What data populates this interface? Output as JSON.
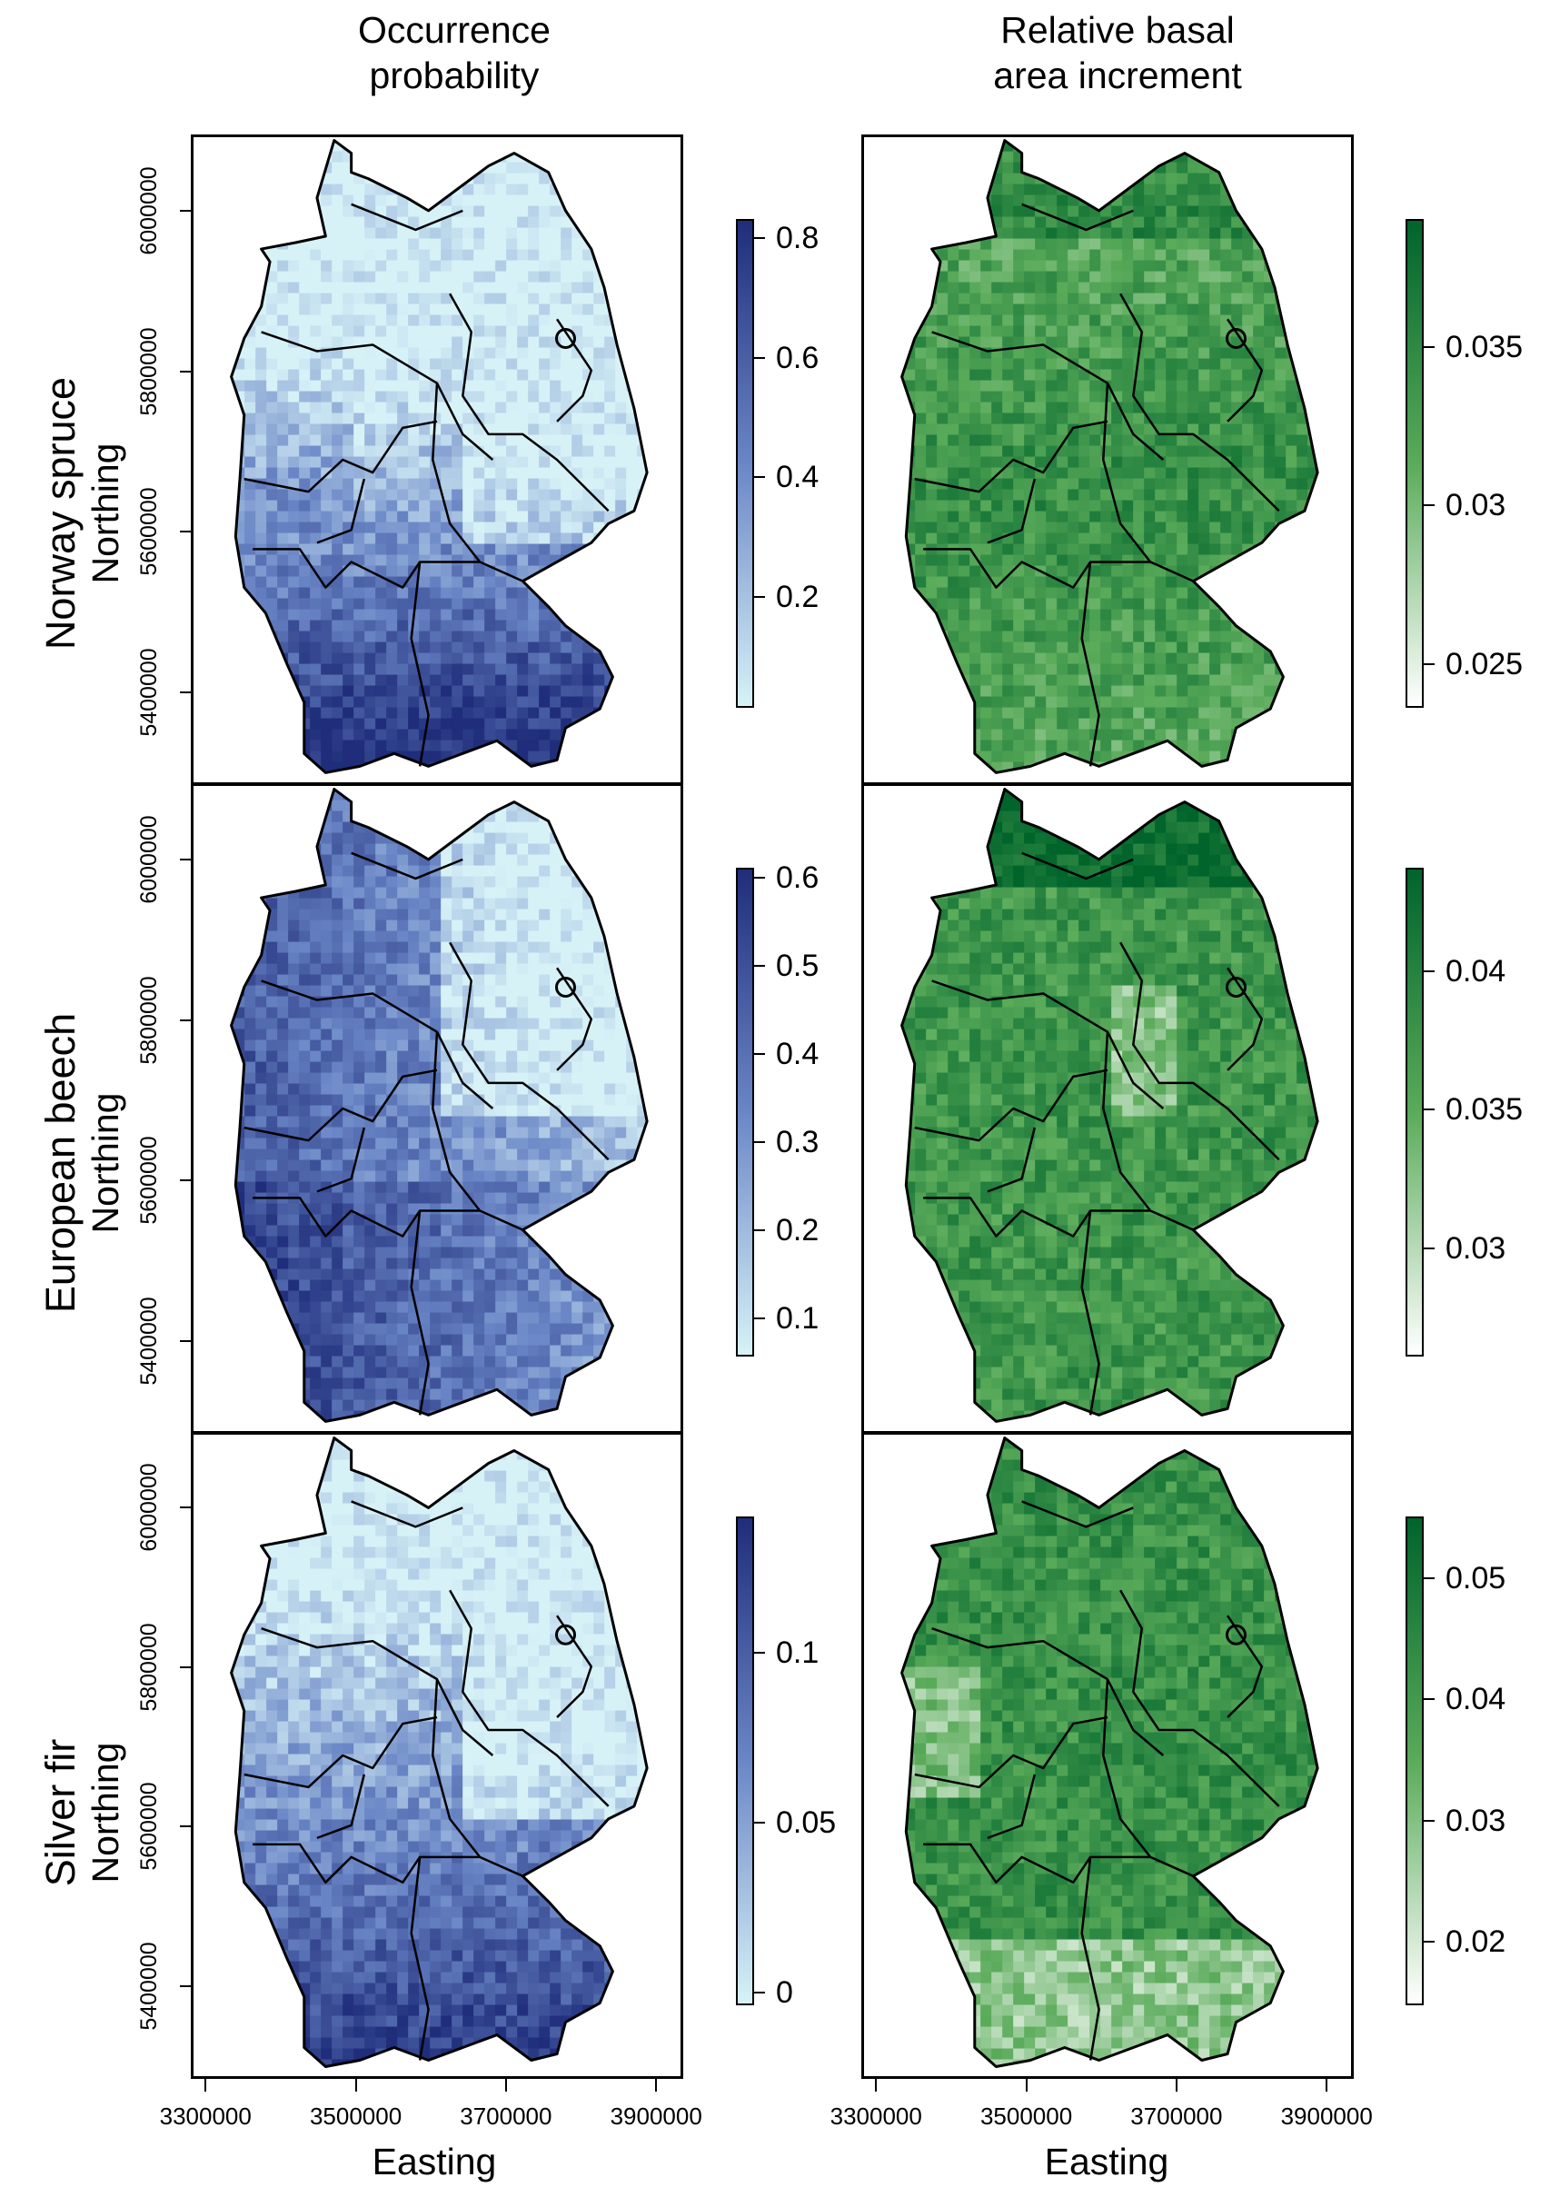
{
  "column_titles": {
    "left": "Occurrence\nprobability",
    "right": "Relative basal\narea increment"
  },
  "rows": [
    {
      "species": "Norway spruce",
      "axis": "Northing"
    },
    {
      "species": "European beech",
      "axis": "Northing"
    },
    {
      "species": "Silver fir",
      "axis": "Northing"
    }
  ],
  "northing_ticks": [
    "6000000",
    "5800000",
    "5600000",
    "5400000"
  ],
  "easting_ticks": [
    "3300000",
    "3500000",
    "3700000",
    "3900000"
  ],
  "x_axis_label": "Easting",
  "colorbars": {
    "occurrence": [
      {
        "range": [
          0.02,
          0.83
        ],
        "ticks": [
          "0.8",
          "0.6",
          "0.4",
          "0.2"
        ],
        "tick_values": [
          0.8,
          0.6,
          0.4,
          0.2
        ]
      },
      {
        "range": [
          0.06,
          0.61
        ],
        "ticks": [
          "0.6",
          "0.5",
          "0.4",
          "0.3",
          "0.2",
          "0.1"
        ],
        "tick_values": [
          0.6,
          0.5,
          0.4,
          0.3,
          0.2,
          0.1
        ]
      },
      {
        "range": [
          -0.003,
          0.14
        ],
        "ticks": [
          "0.1",
          "0.05",
          "0"
        ],
        "tick_values": [
          0.1,
          0.05,
          0.0
        ]
      }
    ],
    "increment": [
      {
        "range": [
          0.0237,
          0.039
        ],
        "ticks": [
          "0.035",
          "0.03",
          "0.025"
        ],
        "tick_values": [
          0.035,
          0.03,
          0.025
        ]
      },
      {
        "range": [
          0.0262,
          0.0437
        ],
        "ticks": [
          "0.04",
          "0.035",
          "0.03"
        ],
        "tick_values": [
          0.04,
          0.035,
          0.03
        ]
      },
      {
        "range": [
          0.015,
          0.055
        ],
        "ticks": [
          "0.05",
          "0.04",
          "0.03",
          "0.02"
        ],
        "tick_values": [
          0.05,
          0.04,
          0.03,
          0.02
        ]
      }
    ]
  },
  "colors": {
    "blue_high": "#1f2d7a",
    "blue_mid": "#6a86c6",
    "blue_low": "#d7f2f7",
    "green_high": "#00642b",
    "green_mid": "#5aab5a",
    "green_low": "#ffffff",
    "border": "#000000"
  }
}
